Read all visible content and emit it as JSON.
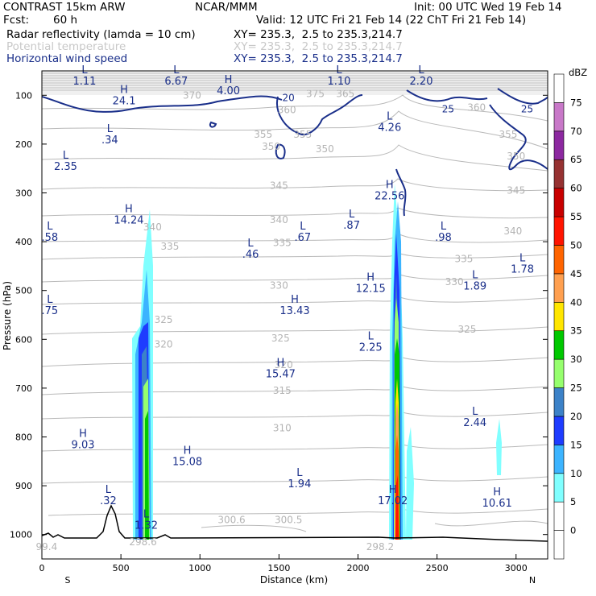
{
  "header": {
    "model": "CONTRAST 15km ARW",
    "org": "NCAR/MMM",
    "init": "Init: 00 UTC Wed 19 Feb 14",
    "fcst_label": "Fcst:",
    "fcst_value": "60 h",
    "valid": "Valid: 12 UTC Fri 21 Feb 14 (22 ChT Fri 21 Feb 14)",
    "fields": [
      {
        "name": "Radar reflectivity (lamda = 10 cm)",
        "xy": "XY= 235.3,  2.5 to 235.3,214.7",
        "color": "#000000"
      },
      {
        "name": "Potential temperature",
        "xy": "XY= 235.3,  2.5 to 235.3,214.7",
        "color": "#c8c8c8"
      },
      {
        "name": "Horizontal wind speed",
        "xy": "XY= 235.3,  2.5 to 235.3,214.7",
        "color": "#1a2f8a"
      }
    ]
  },
  "chart_data": {
    "type": "cross-section",
    "xlabel": "Distance (km)",
    "ylabel": "Pressure (hPa)",
    "xlim": [
      0,
      3200
    ],
    "ylim": [
      1050,
      50
    ],
    "x_ticks": [
      0,
      500,
      1000,
      1500,
      2000,
      2500,
      3000
    ],
    "y_ticks": [
      100,
      200,
      300,
      400,
      500,
      600,
      700,
      800,
      900,
      1000
    ],
    "x_end_labels": {
      "left": "S",
      "right": "N"
    },
    "colorbar": {
      "unit": "dBZ",
      "levels": [
        0,
        5,
        10,
        15,
        20,
        25,
        30,
        35,
        40,
        45,
        50,
        55,
        60,
        65,
        70,
        75
      ],
      "colors": [
        "#ffffff",
        "#ffffff",
        "#80ffff",
        "#3cb4ff",
        "#1e3cff",
        "#3c82c8",
        "#96ff6e",
        "#00c800",
        "#ffe600",
        "#ffa050",
        "#ff6400",
        "#ff1400",
        "#c80000",
        "#963232",
        "#8c28a0",
        "#c878c8",
        "#ffffff"
      ]
    },
    "theta_labels": [
      {
        "x": 950,
        "p": 100,
        "v": "370"
      },
      {
        "x": 1730,
        "p": 97,
        "v": "375"
      },
      {
        "x": 1920,
        "p": 97,
        "v": "365"
      },
      {
        "x": 2750,
        "p": 125,
        "v": "360"
      },
      {
        "x": 1550,
        "p": 130,
        "v": "360"
      },
      {
        "x": 1400,
        "p": 180,
        "v": "355"
      },
      {
        "x": 1650,
        "p": 180,
        "v": "355"
      },
      {
        "x": 2950,
        "p": 180,
        "v": "355"
      },
      {
        "x": 1450,
        "p": 205,
        "v": "350"
      },
      {
        "x": 1790,
        "p": 210,
        "v": "350"
      },
      {
        "x": 3000,
        "p": 225,
        "v": "350"
      },
      {
        "x": 1500,
        "p": 285,
        "v": "345"
      },
      {
        "x": 3000,
        "p": 295,
        "v": "345"
      },
      {
        "x": 1500,
        "p": 355,
        "v": "340"
      },
      {
        "x": 700,
        "p": 370,
        "v": "340"
      },
      {
        "x": 2980,
        "p": 378,
        "v": "340"
      },
      {
        "x": 1520,
        "p": 402,
        "v": "335"
      },
      {
        "x": 810,
        "p": 410,
        "v": "335"
      },
      {
        "x": 2670,
        "p": 435,
        "v": "335"
      },
      {
        "x": 2610,
        "p": 482,
        "v": "330"
      },
      {
        "x": 1500,
        "p": 490,
        "v": "330"
      },
      {
        "x": 770,
        "p": 560,
        "v": "325"
      },
      {
        "x": 1510,
        "p": 598,
        "v": "325"
      },
      {
        "x": 2690,
        "p": 580,
        "v": "325"
      },
      {
        "x": 770,
        "p": 610,
        "v": "320"
      },
      {
        "x": 1530,
        "p": 652,
        "v": "320"
      },
      {
        "x": 1520,
        "p": 705,
        "v": "315"
      },
      {
        "x": 1520,
        "p": 782,
        "v": "310"
      },
      {
        "x": 1200,
        "p": 970,
        "v": "300.6"
      },
      {
        "x": 1560,
        "p": 970,
        "v": "300.5"
      },
      {
        "x": 2140,
        "p": 1025,
        "v": "298.2"
      },
      {
        "x": 640,
        "p": 1015,
        "v": "298.6"
      },
      {
        "x": 30,
        "p": 1025,
        "v": "99.4"
      }
    ],
    "wind_labels": [
      {
        "x": 1560,
        "p": 105,
        "v": "20"
      },
      {
        "x": 2570,
        "p": 128,
        "v": "25"
      },
      {
        "x": 3070,
        "p": 128,
        "v": "25"
      }
    ],
    "hl_labels": [
      {
        "x": 270,
        "p": 55,
        "t": "L",
        "v": "1.11"
      },
      {
        "x": 520,
        "p": 95,
        "t": "H",
        "v": "24.1"
      },
      {
        "x": 850,
        "p": 55,
        "t": "L",
        "v": "6.67"
      },
      {
        "x": 1180,
        "p": 75,
        "t": "H",
        "v": "4.00"
      },
      {
        "x": 1880,
        "p": 55,
        "t": "L",
        "v": "1.10"
      },
      {
        "x": 2400,
        "p": 55,
        "t": "L",
        "v": "2.20"
      },
      {
        "x": 430,
        "p": 175,
        "t": "L",
        "v": ".34"
      },
      {
        "x": 150,
        "p": 230,
        "t": "L",
        "v": "2.35"
      },
      {
        "x": 2200,
        "p": 150,
        "t": "L",
        "v": "4.26"
      },
      {
        "x": 2200,
        "p": 290,
        "t": "H",
        "v": "22.56"
      },
      {
        "x": 550,
        "p": 340,
        "t": "H",
        "v": "14.24"
      },
      {
        "x": 50,
        "p": 375,
        "t": "L",
        "v": ".58"
      },
      {
        "x": 1320,
        "p": 410,
        "t": "L",
        "v": ".46"
      },
      {
        "x": 1650,
        "p": 375,
        "t": "L",
        "v": ".67"
      },
      {
        "x": 1960,
        "p": 350,
        "t": "L",
        "v": ".87"
      },
      {
        "x": 2540,
        "p": 375,
        "t": "L",
        "v": ".98"
      },
      {
        "x": 3040,
        "p": 440,
        "t": "L",
        "v": "1.78"
      },
      {
        "x": 2740,
        "p": 475,
        "t": "L",
        "v": "1.89"
      },
      {
        "x": 2080,
        "p": 480,
        "t": "H",
        "v": "12.15"
      },
      {
        "x": 1600,
        "p": 525,
        "t": "H",
        "v": "13.43"
      },
      {
        "x": 50,
        "p": 525,
        "t": "L",
        "v": ".75"
      },
      {
        "x": 2080,
        "p": 600,
        "t": "L",
        "v": "2.25"
      },
      {
        "x": 1510,
        "p": 655,
        "t": "H",
        "v": "15.47"
      },
      {
        "x": 2740,
        "p": 755,
        "t": "L",
        "v": "2.44"
      },
      {
        "x": 260,
        "p": 800,
        "t": "H",
        "v": "9.03"
      },
      {
        "x": 920,
        "p": 835,
        "t": "H",
        "v": "15.08"
      },
      {
        "x": 1630,
        "p": 880,
        "t": "L",
        "v": "1.94"
      },
      {
        "x": 2220,
        "p": 915,
        "t": "H",
        "v": "17.02"
      },
      {
        "x": 2880,
        "p": 920,
        "t": "H",
        "v": "10.61"
      },
      {
        "x": 420,
        "p": 915,
        "t": "L",
        "v": ".32"
      },
      {
        "x": 660,
        "p": 965,
        "t": "L",
        "v": "1.32"
      }
    ]
  }
}
